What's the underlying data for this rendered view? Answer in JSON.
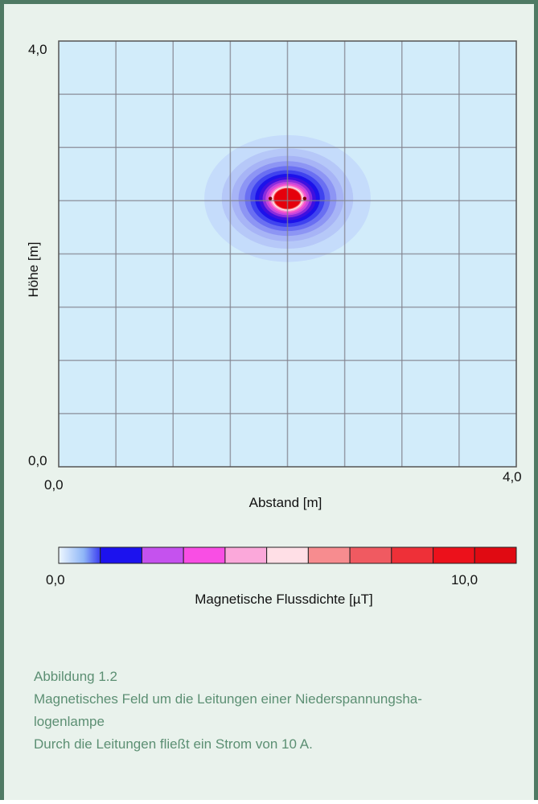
{
  "chart_data": {
    "type": "heatmap",
    "xlabel": "Abstand [m]",
    "ylabel": "Höhe [m]",
    "xlim": [
      0.0,
      4.0
    ],
    "ylim": [
      0.0,
      4.0
    ],
    "x_ticks": [
      "0,0",
      "4,0"
    ],
    "y_ticks": [
      "0,0",
      "4,0"
    ],
    "grid": true,
    "sources": [
      {
        "x": 1.85,
        "y": 2.52
      },
      {
        "x": 2.15,
        "y": 2.52
      }
    ],
    "colorbar": {
      "label": "Magnetische Flussdichte [µT]",
      "min_label": "0,0",
      "max_label": "10,0",
      "range": [
        0.0,
        11.0
      ],
      "colors": [
        "#c7e3ff",
        "#1c12ee",
        "#c552ee",
        "#f94ee4",
        "#fba8da",
        "#ffdfe6",
        "#f78c8f",
        "#f05a61",
        "#ee3038",
        "#ec111b",
        "#e00a12"
      ]
    },
    "contour_levels": [
      {
        "level": 0.25,
        "color": "#c5dcfb"
      },
      {
        "level": 0.4,
        "color": "#b6c8f8"
      },
      {
        "level": 0.55,
        "color": "#a7b4f6"
      },
      {
        "level": 0.72,
        "color": "#8d95f4"
      },
      {
        "level": 0.95,
        "color": "#6a6ff2"
      },
      {
        "level": 1.25,
        "color": "#3f43ef"
      },
      {
        "level": 1.65,
        "color": "#1c12ea"
      },
      {
        "level": 2.15,
        "color": "#3e10e0"
      },
      {
        "level": 2.8,
        "color": "#8a2cdc"
      },
      {
        "level": 3.6,
        "color": "#c847dd"
      },
      {
        "level": 4.6,
        "color": "#f552cf"
      },
      {
        "level": 5.8,
        "color": "#fa98d0"
      },
      {
        "level": 7.0,
        "color": "#ffe4ea"
      },
      {
        "level": 8.2,
        "color": "#f7888d"
      },
      {
        "level": 9.2,
        "color": "#ee3038"
      },
      {
        "level": 10.0,
        "color": "#e5000c"
      }
    ],
    "background_color": "#d2ecfa"
  },
  "caption": {
    "figure_label": "Abbildung 1.2",
    "title_line1": "Magnetisches Feld um die Leitungen einer Niederspannungsha-",
    "title_line2": "logenlampe",
    "description": "Durch die Leitungen fließt ein Strom von 10 A."
  }
}
